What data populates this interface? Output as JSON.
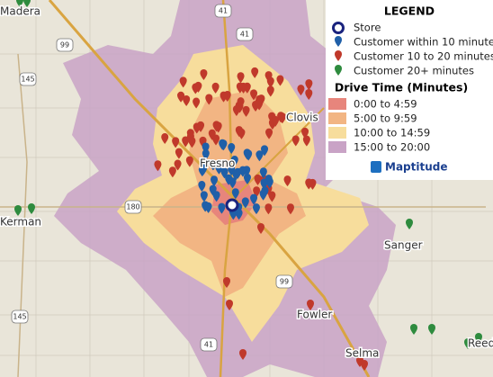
{
  "legend": {
    "title": "LEGEND",
    "items": [
      "Store",
      "Customer within 10 minutes",
      "Customer 10 to 20 minutes",
      "Customer 20+ minutes"
    ],
    "drive_time_title": "Drive Time (Minutes)",
    "bands": [
      "0:00 to 4:59",
      "5:00 to 9:59",
      "10:00 to 14:59",
      "15:00 to 20:00"
    ],
    "brand": "Maptitude"
  },
  "places": [
    "Madera",
    "Fresno",
    "Clovis",
    "Kerman",
    "Sanger",
    "Fowler",
    "Selma",
    "Reedley"
  ],
  "shields": [
    "41",
    "41",
    "99",
    "145",
    "180",
    "99",
    "145",
    "41"
  ]
}
